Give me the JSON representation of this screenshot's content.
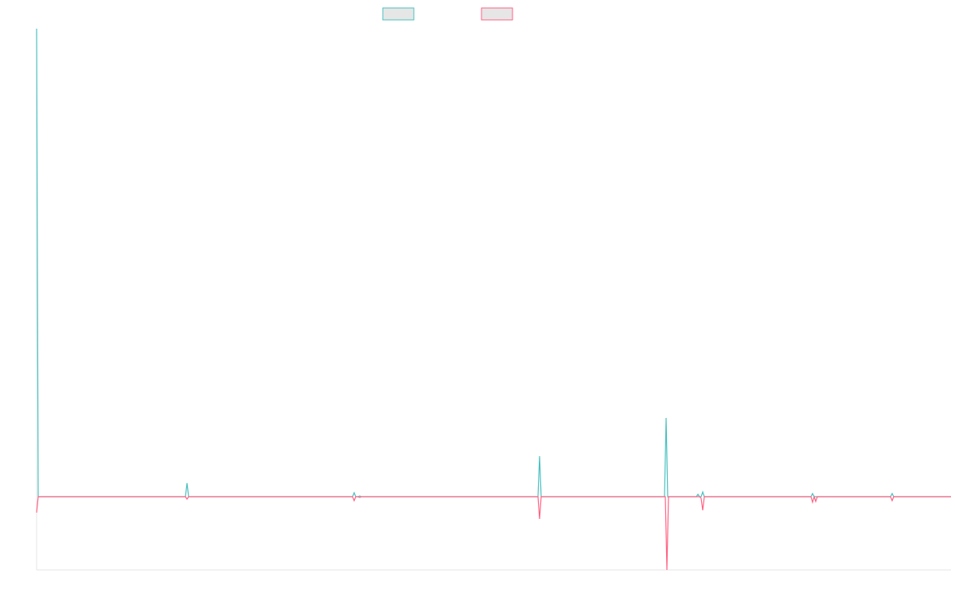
{
  "chart_data": {
    "type": "line",
    "xlim": [
      46,
      1195
    ],
    "ylim": [
      -92,
      588
    ],
    "series": [
      {
        "color": "#4bc0c0",
        "x": [
          46,
          48,
          233,
          235,
          237,
          443,
          445,
          447,
          450,
          452,
          454,
          676,
          678,
          680,
          835,
          837,
          839,
          875,
          877,
          879,
          881,
          883,
          885,
          1019,
          1021,
          1023,
          1119,
          1121,
          1123,
          1195
        ],
        "values": [
          588,
          0,
          0,
          17,
          0,
          0,
          5,
          0,
          0,
          1,
          0,
          0,
          51,
          0,
          0,
          99,
          0,
          0,
          3,
          0,
          0,
          6,
          0,
          0,
          4,
          0,
          0,
          4,
          0,
          0
        ]
      },
      {
        "color": "#ff6384",
        "x": [
          46,
          48,
          233,
          235,
          237,
          443,
          445,
          447,
          450,
          452,
          454,
          676,
          678,
          680,
          836,
          838,
          840,
          879,
          881,
          883,
          885,
          1019,
          1021,
          1023,
          1025,
          1027,
          1119,
          1121,
          1123,
          1195
        ],
        "values": [
          -20,
          0,
          0,
          -3,
          0,
          0,
          -5,
          0,
          0,
          -1,
          0,
          0,
          -28,
          0,
          0,
          -92,
          0,
          0,
          -2,
          -17,
          0,
          0,
          -7,
          0,
          -6,
          0,
          0,
          -5,
          0,
          0
        ]
      }
    ]
  }
}
